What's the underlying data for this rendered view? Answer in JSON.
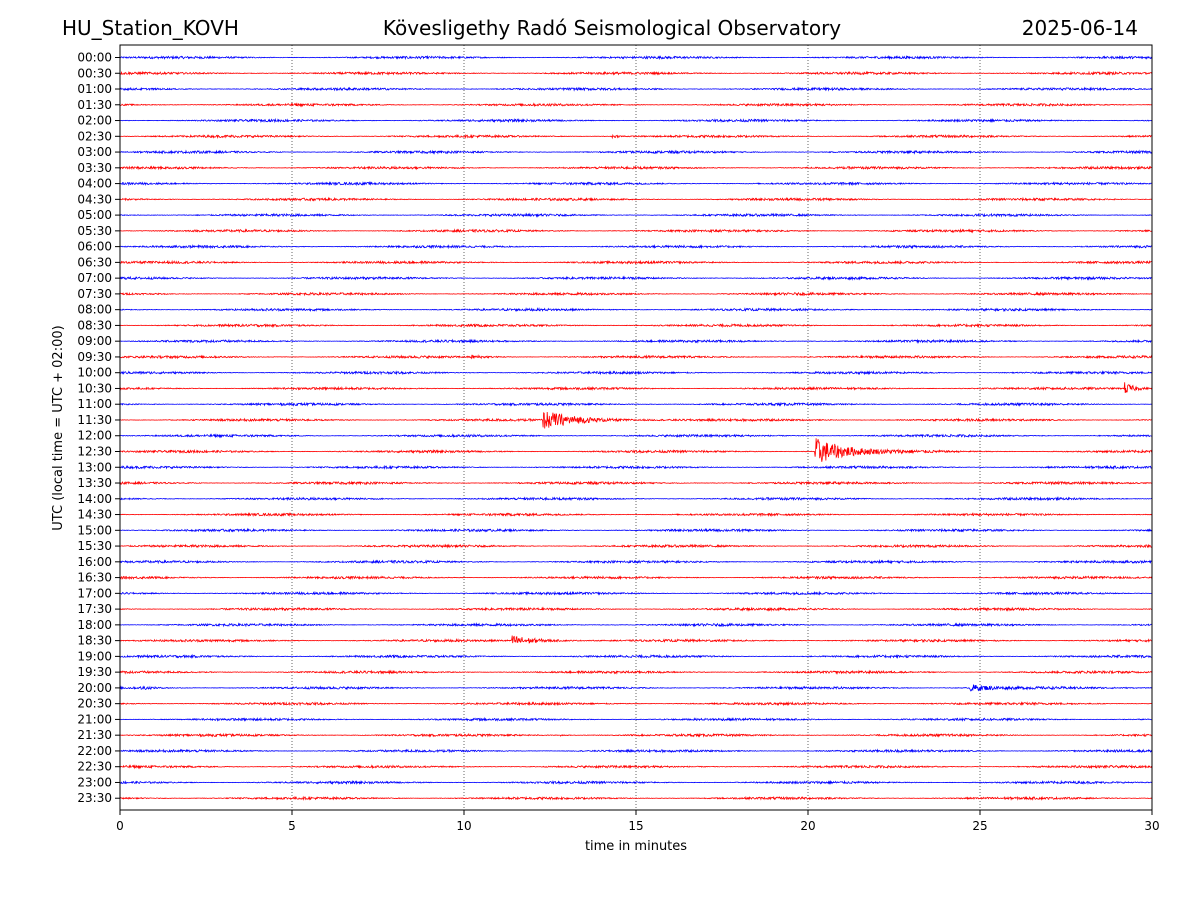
{
  "header": {
    "station": "HU_Station_KOVH",
    "observatory": "Kövesligethy Radó Seismological Observatory",
    "date": "2025-06-14"
  },
  "chart_data": {
    "type": "line",
    "title": "Kövesligethy Radó Seismological Observatory",
    "xlabel": "time in minutes",
    "ylabel": "UTC (local time = UTC + 02:00)",
    "xlim": [
      0,
      30
    ],
    "x_ticks": [
      "0",
      "5",
      "10",
      "15",
      "20",
      "25",
      "30"
    ],
    "grid_x": true,
    "trace_colors": [
      "#0000ff",
      "#ff0000"
    ],
    "rows": [
      "00:00",
      "00:30",
      "01:00",
      "01:30",
      "02:00",
      "02:30",
      "03:00",
      "03:30",
      "04:00",
      "04:30",
      "05:00",
      "05:30",
      "06:00",
      "06:30",
      "07:00",
      "07:30",
      "08:00",
      "08:30",
      "09:00",
      "09:30",
      "10:00",
      "10:30",
      "11:00",
      "11:30",
      "12:00",
      "12:30",
      "13:00",
      "13:30",
      "14:00",
      "14:30",
      "15:00",
      "15:30",
      "16:00",
      "16:30",
      "17:00",
      "17:30",
      "18:00",
      "18:30",
      "19:00",
      "19:30",
      "20:00",
      "20:30",
      "21:00",
      "21:30",
      "22:00",
      "22:30",
      "23:00",
      "23:30"
    ],
    "events": [
      {
        "row": "02:30",
        "start_min": 14.3,
        "peak": 0.15,
        "duration_min": 0.6
      },
      {
        "row": "09:30",
        "start_min": 10.2,
        "peak": 0.15,
        "duration_min": 1.2
      },
      {
        "row": "10:30",
        "start_min": 29.2,
        "peak": 0.6,
        "duration_min": 0.8
      },
      {
        "row": "11:30",
        "start_min": 12.3,
        "peak": 0.9,
        "duration_min": 3.0
      },
      {
        "row": "12:30",
        "start_min": 20.2,
        "peak": 1.4,
        "duration_min": 2.5
      },
      {
        "row": "18:30",
        "start_min": 11.4,
        "peak": 0.5,
        "duration_min": 2.0
      },
      {
        "row": "20:00",
        "start_min": 0.6,
        "peak": 0.15,
        "duration_min": 0.8
      },
      {
        "row": "20:00",
        "start_min": 24.7,
        "peak": 0.35,
        "duration_min": 2.0
      },
      {
        "row": "21:30",
        "start_min": 12.8,
        "peak": 0.12,
        "duration_min": 0.3
      }
    ]
  }
}
